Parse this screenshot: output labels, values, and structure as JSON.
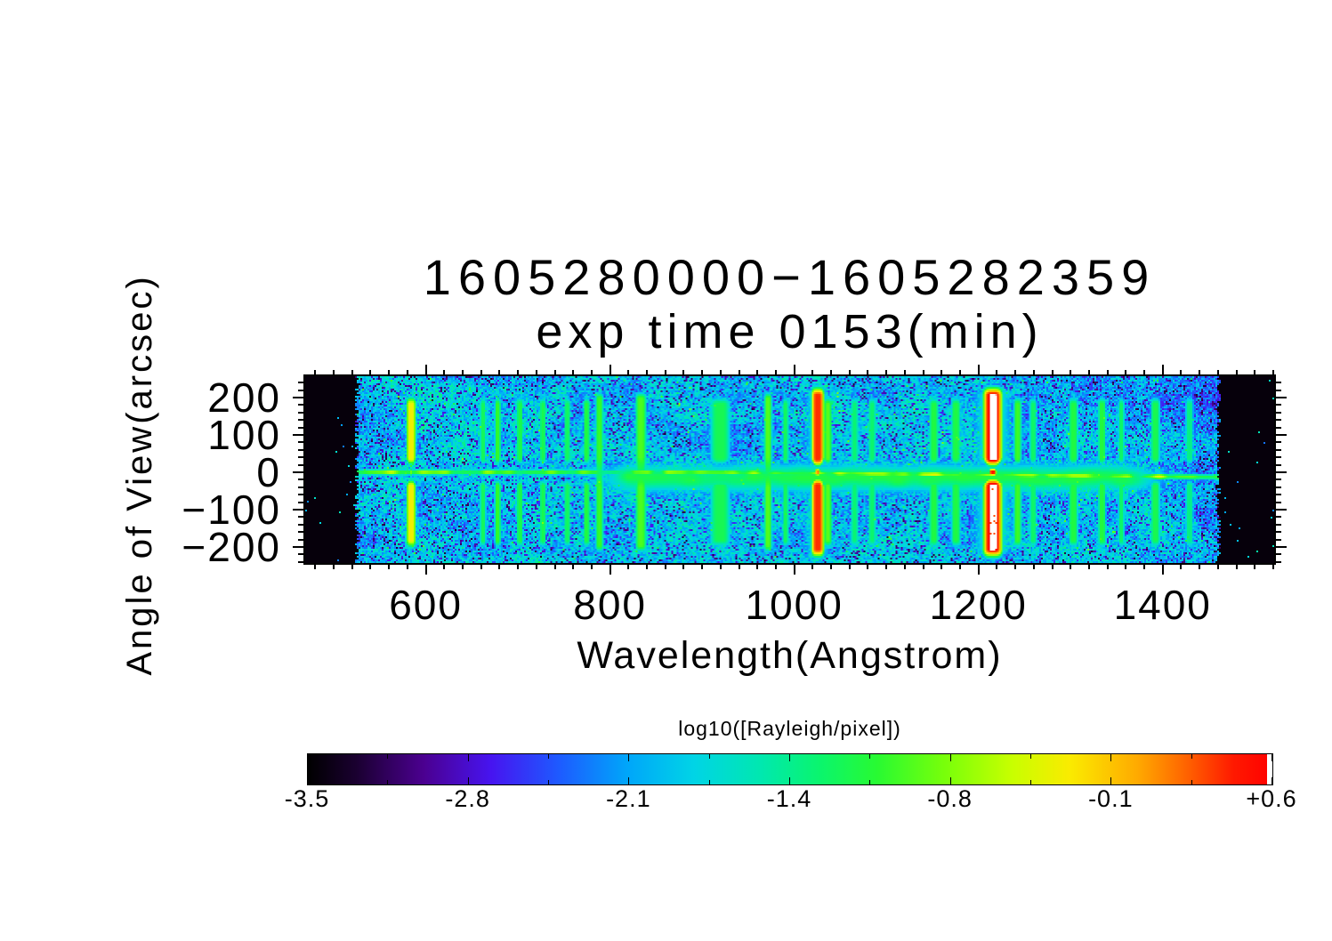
{
  "figure": {
    "title_line1": "1605280000−1605282359",
    "title_line2": "exp time 0153(min)"
  },
  "chart_data": {
    "type": "heatmap",
    "title": "1605280000−1605282359 exp time 0153(min)",
    "xlabel": "Wavelength(Angstrom)",
    "ylabel": "Angle of View(arcsec)",
    "xlim": [
      469,
      1521
    ],
    "ylim": [
      -243,
      257
    ],
    "x_ticks": [
      {
        "label": "600",
        "value": 600
      },
      {
        "label": "800",
        "value": 800
      },
      {
        "label": "1000",
        "value": 1000
      },
      {
        "label": "1200",
        "value": 1200
      },
      {
        "label": "1400",
        "value": 1400
      }
    ],
    "x_minor_step": 20,
    "y_ticks": [
      {
        "label": "200",
        "value": 200
      },
      {
        "label": "100",
        "value": 100
      },
      {
        "label": "0",
        "value": 0
      },
      {
        "label": "−100",
        "value": -100
      },
      {
        "label": "−200",
        "value": -200
      }
    ],
    "y_minor_step": 20,
    "data_extent_wavelength": [
      522,
      1464
    ],
    "background_log10R": -1.95,
    "noise": {
      "speckle_fraction": 0.15,
      "amplitude_log10R": 0.35
    },
    "center_streak": {
      "log10R": -1.0,
      "halfwidth_arcsec": 11,
      "tilt_start_A": 900,
      "tilt_arcsec": -13
    },
    "diffuse_band": {
      "log10R": -1.4,
      "center_arcsec": -16,
      "sigma_arcsec": 55,
      "from_A": 740
    },
    "emission_lines": [
      {
        "wavelength_A": 584,
        "peak_log10R": -0.3,
        "sigma_A": 6,
        "extent": "split"
      },
      {
        "wavelength_A": 662,
        "peak_log10R": -1.25,
        "sigma_A": 4,
        "extent": "split"
      },
      {
        "wavelength_A": 678,
        "peak_log10R": -1.05,
        "sigma_A": 4,
        "extent": "split"
      },
      {
        "wavelength_A": 702,
        "peak_log10R": -1.15,
        "sigma_A": 4,
        "extent": "split"
      },
      {
        "wavelength_A": 727,
        "peak_log10R": -1.2,
        "sigma_A": 4,
        "extent": "split"
      },
      {
        "wavelength_A": 754,
        "peak_log10R": -1.25,
        "sigma_A": 4,
        "extent": "split"
      },
      {
        "wavelength_A": 775,
        "peak_log10R": -1.12,
        "sigma_A": 4,
        "extent": "split"
      },
      {
        "wavelength_A": 789,
        "peak_log10R": -1.02,
        "sigma_A": 5,
        "extent": "full"
      },
      {
        "wavelength_A": 834,
        "peak_log10R": -0.95,
        "sigma_A": 7,
        "extent": "full"
      },
      {
        "wavelength_A": 920,
        "peak_log10R": -1.22,
        "sigma_A": 13,
        "extent": "split"
      },
      {
        "wavelength_A": 972,
        "peak_log10R": -0.92,
        "sigma_A": 5,
        "extent": "full"
      },
      {
        "wavelength_A": 991,
        "peak_log10R": -1.25,
        "sigma_A": 4,
        "extent": "split"
      },
      {
        "wavelength_A": 1026,
        "peak_log10R": 0.38,
        "sigma_A": 8,
        "extent": "split"
      },
      {
        "wavelength_A": 1037,
        "peak_log10R": -0.92,
        "sigma_A": 5,
        "extent": "split"
      },
      {
        "wavelength_A": 1066,
        "peak_log10R": -1.35,
        "sigma_A": 5,
        "extent": "split"
      },
      {
        "wavelength_A": 1085,
        "peak_log10R": -1.32,
        "sigma_A": 5,
        "extent": "split"
      },
      {
        "wavelength_A": 1152,
        "peak_log10R": -1.15,
        "sigma_A": 6,
        "extent": "split"
      },
      {
        "wavelength_A": 1176,
        "peak_log10R": -1.15,
        "sigma_A": 6,
        "extent": "split"
      },
      {
        "wavelength_A": 1216,
        "peak_log10R": 0.6,
        "sigma_A": 12,
        "extent": "split"
      },
      {
        "wavelength_A": 1243,
        "peak_log10R": -1.0,
        "sigma_A": 5,
        "extent": "split"
      },
      {
        "wavelength_A": 1260,
        "peak_log10R": -1.3,
        "sigma_A": 5,
        "extent": "split"
      },
      {
        "wavelength_A": 1304,
        "peak_log10R": -1.15,
        "sigma_A": 6,
        "extent": "split"
      },
      {
        "wavelength_A": 1335,
        "peak_log10R": -1.12,
        "sigma_A": 5,
        "extent": "split"
      },
      {
        "wavelength_A": 1356,
        "peak_log10R": -1.3,
        "sigma_A": 4,
        "extent": "split"
      },
      {
        "wavelength_A": 1393,
        "peak_log10R": -1.2,
        "sigma_A": 6,
        "extent": "split"
      },
      {
        "wavelength_A": 1430,
        "peak_log10R": -1.4,
        "sigma_A": 5,
        "extent": "split"
      }
    ],
    "colorbar": {
      "label": "log10([Rayleigh/pixel])",
      "tick_labels": [
        "-3.5",
        "-2.8",
        "-2.1",
        "-1.4",
        "-0.8",
        "-0.1",
        "+0.6"
      ],
      "min": -3.5,
      "max": 0.6,
      "colormap": "rainbow-white"
    }
  }
}
